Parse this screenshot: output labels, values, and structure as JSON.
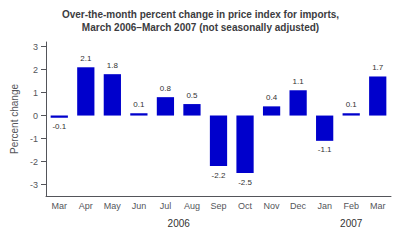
{
  "chart_data": {
    "type": "bar",
    "title": "Over-the-month percent change in price index for imports,\nMarch 2006–March 2007 (not seasonally adjusted)",
    "ylabel": "Percent change",
    "categories": [
      "Mar",
      "Apr",
      "May",
      "Jun",
      "Jul",
      "Aug",
      "Sep",
      "Oct",
      "Nov",
      "Dec",
      "Jan",
      "Feb",
      "Mar"
    ],
    "values": [
      -0.1,
      2.1,
      1.8,
      0.1,
      0.8,
      0.5,
      -2.2,
      -2.5,
      0.4,
      1.1,
      -1.1,
      0.1,
      1.7
    ],
    "color": "#0000cc",
    "ylim": [
      -3.5,
      3.2
    ],
    "yticks": [
      -3,
      -2,
      -1,
      0,
      1,
      2,
      3
    ],
    "grid": false,
    "data_labels": true,
    "annotations": [
      {
        "text": "2006",
        "x": 4.5
      },
      {
        "text": "2007",
        "x": 11.0
      }
    ]
  }
}
